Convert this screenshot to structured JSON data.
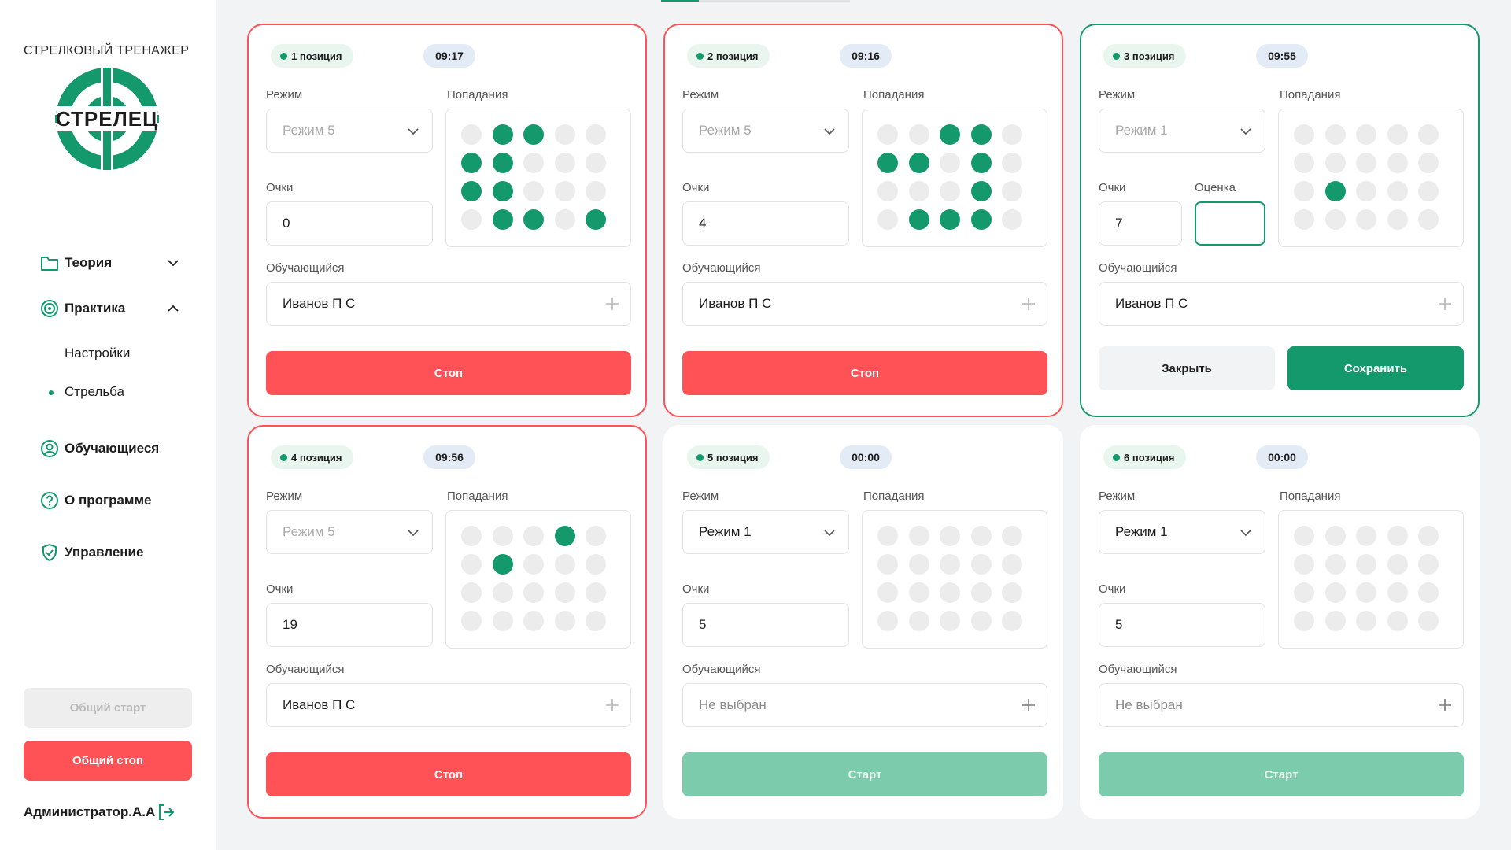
{
  "app": {
    "title": "СТРЕЛКОВЫЙ ТРЕНАЖЕР",
    "logo_text": "СТРЕЛЕЦ",
    "brand_color": "#13996b",
    "danger_color": "#ff5256"
  },
  "sidebar": {
    "nav": [
      {
        "label": "Теория",
        "icon": "folder-icon",
        "expanded": false
      },
      {
        "label": "Практика",
        "icon": "target-icon",
        "expanded": true
      },
      {
        "label": "Обучающиеся",
        "icon": "user-circle-icon"
      },
      {
        "label": "О программе",
        "icon": "help-circle-icon"
      },
      {
        "label": "Управление",
        "icon": "shield-check-icon"
      }
    ],
    "practice_sub": [
      {
        "label": "Настройки",
        "active": false
      },
      {
        "label": "Стрельба",
        "active": true
      }
    ],
    "all_start_label": "Общий старт",
    "all_stop_label": "Общий стоп",
    "user_name": "Администратор.А.А"
  },
  "labels": {
    "mode": "Режим",
    "hits": "Попадания",
    "score": "Очки",
    "grade": "Оценка",
    "student": "Обучающийся"
  },
  "positions": [
    {
      "badge": "1 позиция",
      "time": "09:17",
      "state": "running",
      "mode": "Режим 5",
      "mode_disabled": true,
      "score": "0",
      "student": "Иванов П С",
      "hits": [
        [
          0,
          1,
          1,
          0,
          0
        ],
        [
          1,
          1,
          0,
          0,
          0
        ],
        [
          1,
          1,
          0,
          0,
          0
        ],
        [
          0,
          1,
          1,
          0,
          1
        ]
      ],
      "action_label": "Стоп"
    },
    {
      "badge": "2 позиция",
      "time": "09:16",
      "state": "running",
      "mode": "Режим 5",
      "mode_disabled": true,
      "score": "4",
      "student": "Иванов П С",
      "hits": [
        [
          0,
          0,
          1,
          1,
          0
        ],
        [
          1,
          1,
          0,
          1,
          0
        ],
        [
          0,
          0,
          0,
          1,
          0
        ],
        [
          0,
          1,
          1,
          1,
          0
        ]
      ],
      "action_label": "Стоп"
    },
    {
      "badge": "3 позиция",
      "time": "09:55",
      "state": "done",
      "mode": "Режим 1",
      "mode_disabled": true,
      "score": "7",
      "grade": "",
      "student": "Иванов П С",
      "hits": [
        [
          0,
          0,
          0,
          0,
          0
        ],
        [
          0,
          0,
          0,
          0,
          0
        ],
        [
          0,
          1,
          0,
          0,
          0
        ],
        [
          0,
          0,
          0,
          0,
          0
        ]
      ],
      "close_label": "Закрыть",
      "save_label": "Сохранить"
    },
    {
      "badge": "4 позиция",
      "time": "09:56",
      "state": "running",
      "mode": "Режим 5",
      "mode_disabled": true,
      "score": "19",
      "student": "Иванов П С",
      "hits": [
        [
          0,
          0,
          0,
          1,
          0
        ],
        [
          0,
          1,
          0,
          0,
          0
        ],
        [
          0,
          0,
          0,
          0,
          0
        ],
        [
          0,
          0,
          0,
          0,
          0
        ]
      ],
      "action_label": "Стоп"
    },
    {
      "badge": "5 позиция",
      "time": "00:00",
      "state": "idle",
      "mode": "Режим 1",
      "mode_disabled": false,
      "score": "5",
      "student": "Не выбран",
      "student_placeholder": true,
      "hits": [
        [
          0,
          0,
          0,
          0,
          0
        ],
        [
          0,
          0,
          0,
          0,
          0
        ],
        [
          0,
          0,
          0,
          0,
          0
        ],
        [
          0,
          0,
          0,
          0,
          0
        ]
      ],
      "action_label": "Старт"
    },
    {
      "badge": "6 позиция",
      "time": "00:00",
      "state": "idle",
      "mode": "Режим 1",
      "mode_disabled": false,
      "score": "5",
      "student": "Не выбран",
      "student_placeholder": true,
      "hits": [
        [
          0,
          0,
          0,
          0,
          0
        ],
        [
          0,
          0,
          0,
          0,
          0
        ],
        [
          0,
          0,
          0,
          0,
          0
        ],
        [
          0,
          0,
          0,
          0,
          0
        ]
      ],
      "action_label": "Старт"
    }
  ]
}
